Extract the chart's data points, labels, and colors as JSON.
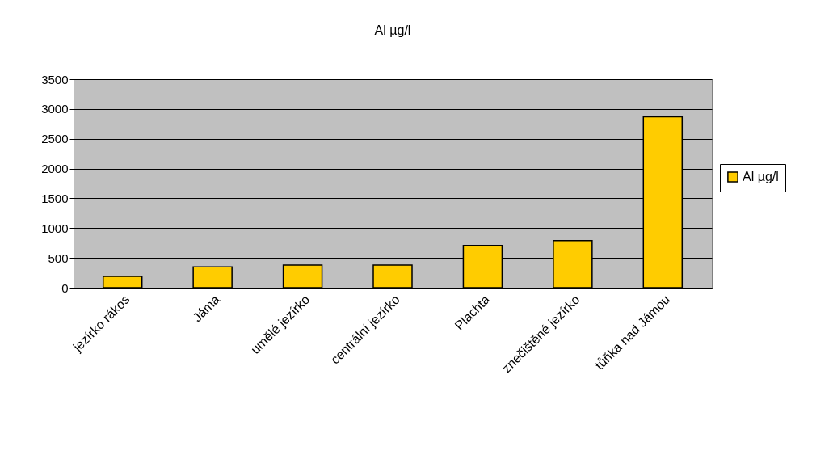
{
  "chart_data": {
    "type": "bar",
    "title": "Al µg/l",
    "categories": [
      "jezírko rákos",
      "Jáma",
      "umělé jezírko",
      "centrální jezírko",
      "Plachta",
      "znečištěné jezírko",
      "tůňka nad Jámou"
    ],
    "series": [
      {
        "name": "Al µg/l",
        "color": "#ffcc00",
        "values": [
          190,
          350,
          380,
          380,
          710,
          790,
          2870
        ]
      }
    ],
    "ylim": [
      0,
      3500
    ],
    "yticks": [
      0,
      500,
      1000,
      1500,
      2000,
      2500,
      3000,
      3500
    ],
    "grid": "y",
    "legend": "right"
  }
}
